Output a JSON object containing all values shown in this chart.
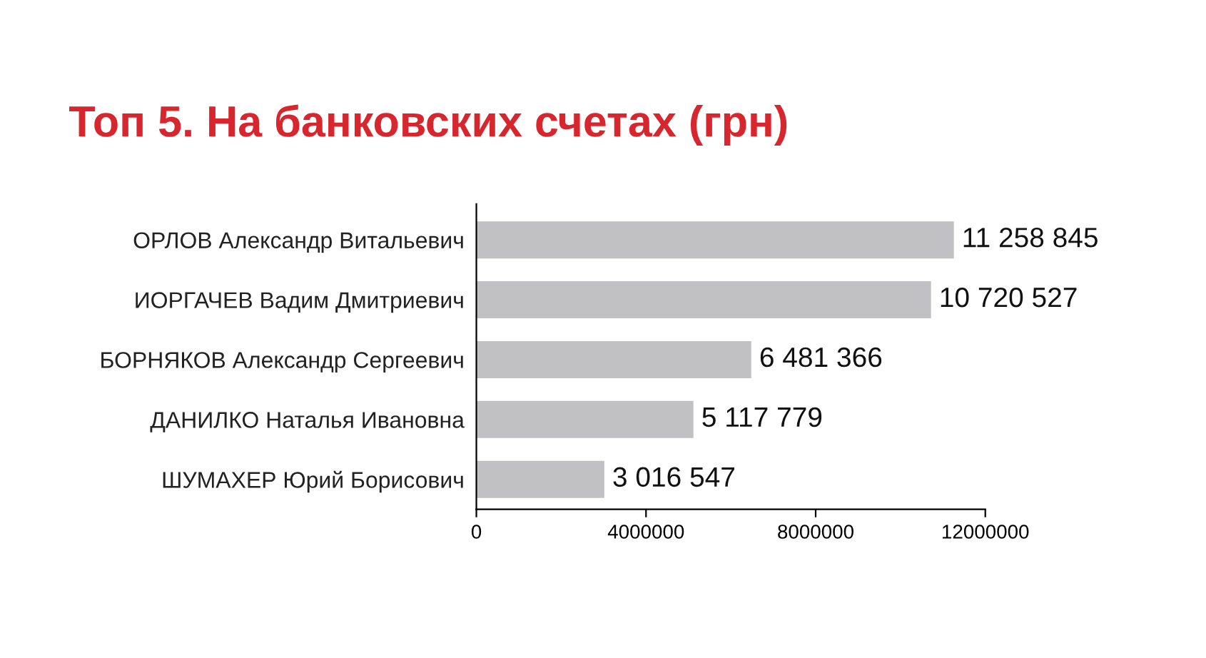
{
  "chart_data": {
    "type": "bar",
    "orientation": "horizontal",
    "title": "Топ 5. На банковских счетах (грн)",
    "categories": [
      "ОРЛОВ Александр Витальевич",
      "ИОРГАЧЕВ Вадим Дмитриевич",
      "БОРНЯКОВ Александр Сергеевич",
      "ДАНИЛКО Наталья Ивановна",
      "ШУМАХЕР Юрий Борисович"
    ],
    "values": [
      11258845,
      10720527,
      6481366,
      5117779,
      3016547
    ],
    "value_labels": [
      "11 258 845",
      "10 720 527",
      "6 481 366",
      "5 117 779",
      "3 016 547"
    ],
    "color": "#c1c1c3",
    "xlim": [
      0,
      12000000
    ],
    "xticks": [
      0,
      4000000,
      8000000,
      12000000
    ],
    "grid": false,
    "legend": false
  }
}
